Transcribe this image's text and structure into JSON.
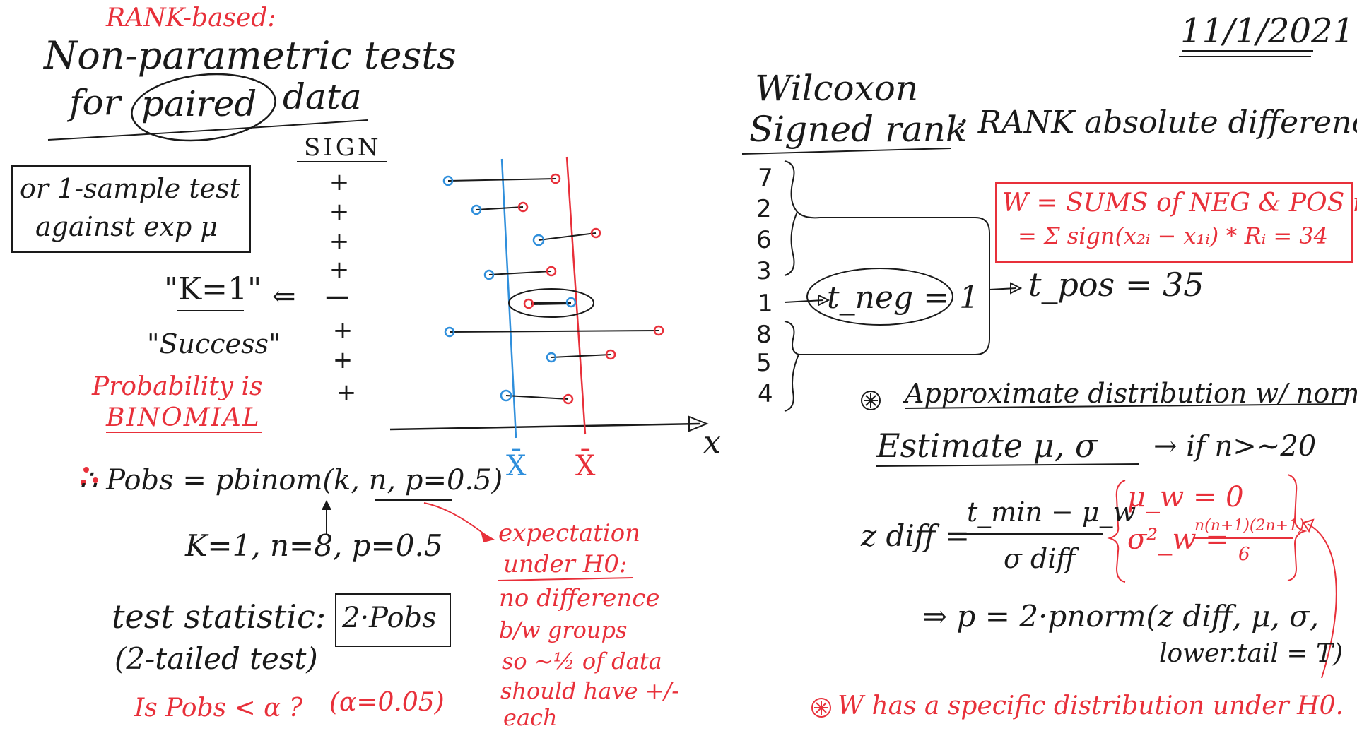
{
  "date": "11/1/2021",
  "left": {
    "rank_based": "RANK-based:",
    "title_line1": "Non-parametric tests",
    "title_for": "for",
    "title_paired": "paired",
    "title_data": "data",
    "one_sample_line1": "or 1-sample test",
    "one_sample_line2": "against exp μ",
    "sign_header": "SIGN",
    "signs": [
      "+",
      "+",
      "+",
      "+",
      "—",
      "+",
      "+",
      "+"
    ],
    "k_label": "\"K=1\"",
    "arrow_back": "⇐",
    "success": "\"Success\"",
    "prob_line1": "Probability is",
    "prob_line2": "BINOMIAL",
    "pobs": "∴ Pobs = pbinom(k, n, p=0.5)",
    "knp": "K=1, n=8, p=0.5",
    "test_stat_label": "test statistic:",
    "test_stat_box": "2·Pobs",
    "two_tailed": "(2-tailed test)",
    "is_pobs": "Is Pobs < α ?",
    "alpha": "(α=0.05)",
    "expectation": [
      "expectation",
      "under H0:",
      "no difference",
      "b/w groups",
      "so ~½ of data",
      "should have +/-",
      "each"
    ]
  },
  "plot": {
    "x_axis_label": "x",
    "xbar_blue": "X̄",
    "xbar_red": "X̄",
    "colors": {
      "blue": "#2f8fdc",
      "red": "#e8303a"
    }
  },
  "right": {
    "wilcoxon_line1": "Wilcoxon",
    "wilcoxon_line2": "Signed rank",
    "rank_abs": ": RANK absolute differences",
    "ranks": [
      "7",
      "2",
      "6",
      "3",
      "1",
      "8",
      "5",
      "4"
    ],
    "t_neg": "t_neg = 1",
    "t_pos": "t_pos = 35",
    "w_line1": "W = SUMS of NEG & POS ranks",
    "w_line2": "= Σ sign(x₂ᵢ − x₁ᵢ) * Rᵢ = 34",
    "approx": "Approximate distribution w/ normal",
    "estimate": "Estimate μ, σ",
    "if_n": "→ if n>~20",
    "z_diff": "z diff =",
    "z_num": "t_min − μ_w",
    "z_den": "σ diff",
    "mu_w": "μ_w = 0",
    "sigma_w": "σ²_w =",
    "sigma_num": "n(n+1)(2n+1)",
    "sigma_den": "6",
    "p_line1": "⇒ p = 2·pnorm(z diff, μ, σ,",
    "p_line2": "lower.tail = T)",
    "w_specific": "W has a specific distribution under H0."
  }
}
